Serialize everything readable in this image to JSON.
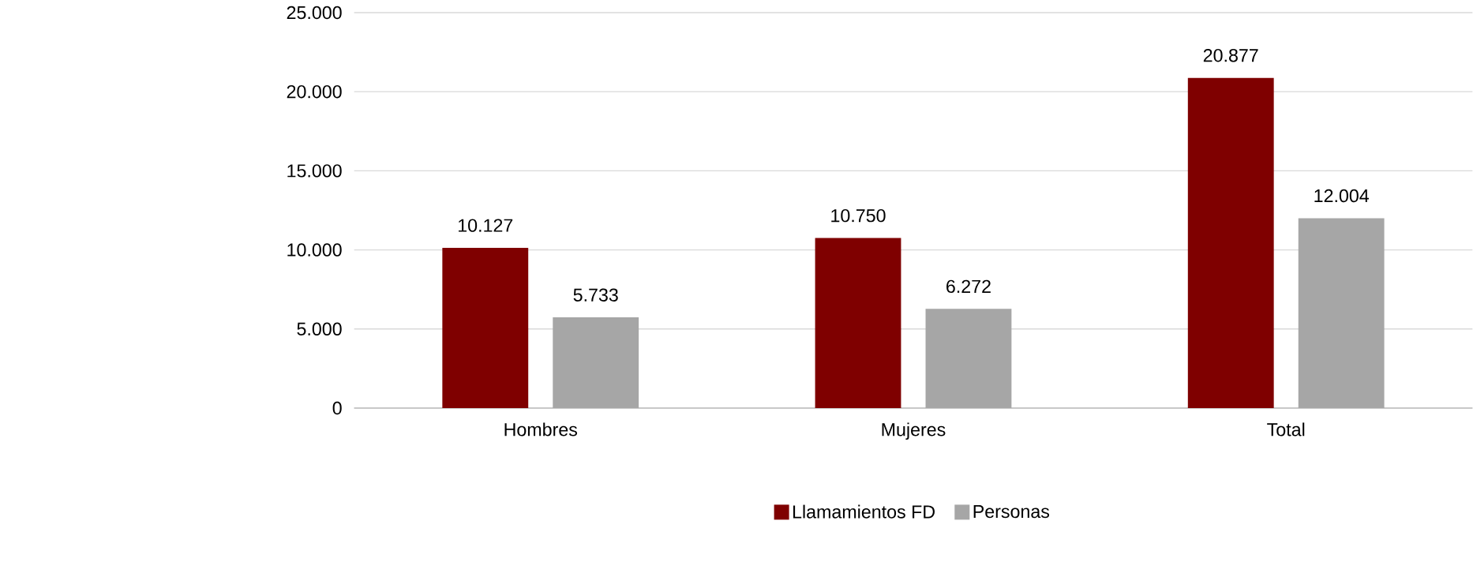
{
  "chart_data": {
    "type": "bar",
    "categories": [
      "Hombres",
      "Mujeres",
      "Total"
    ],
    "series": [
      {
        "name": "Llamamientos FD",
        "color": "#7f0000",
        "values": [
          10127,
          10750,
          20877
        ],
        "value_labels": [
          "10.127",
          "10.750",
          "20.877"
        ]
      },
      {
        "name": "Personas",
        "color": "#a6a6a6",
        "values": [
          5733,
          6272,
          12004
        ],
        "value_labels": [
          "5.733",
          "6.272",
          "12.004"
        ]
      }
    ],
    "ylim": [
      0,
      25000
    ],
    "yticks": [
      {
        "value": 0,
        "label": "0"
      },
      {
        "value": 5000,
        "label": "5.000"
      },
      {
        "value": 10000,
        "label": "10.000"
      },
      {
        "value": 15000,
        "label": "15.000"
      },
      {
        "value": 20000,
        "label": "20.000"
      },
      {
        "value": 25000,
        "label": "25.000"
      }
    ],
    "grid": "y",
    "legend": "bottom"
  }
}
